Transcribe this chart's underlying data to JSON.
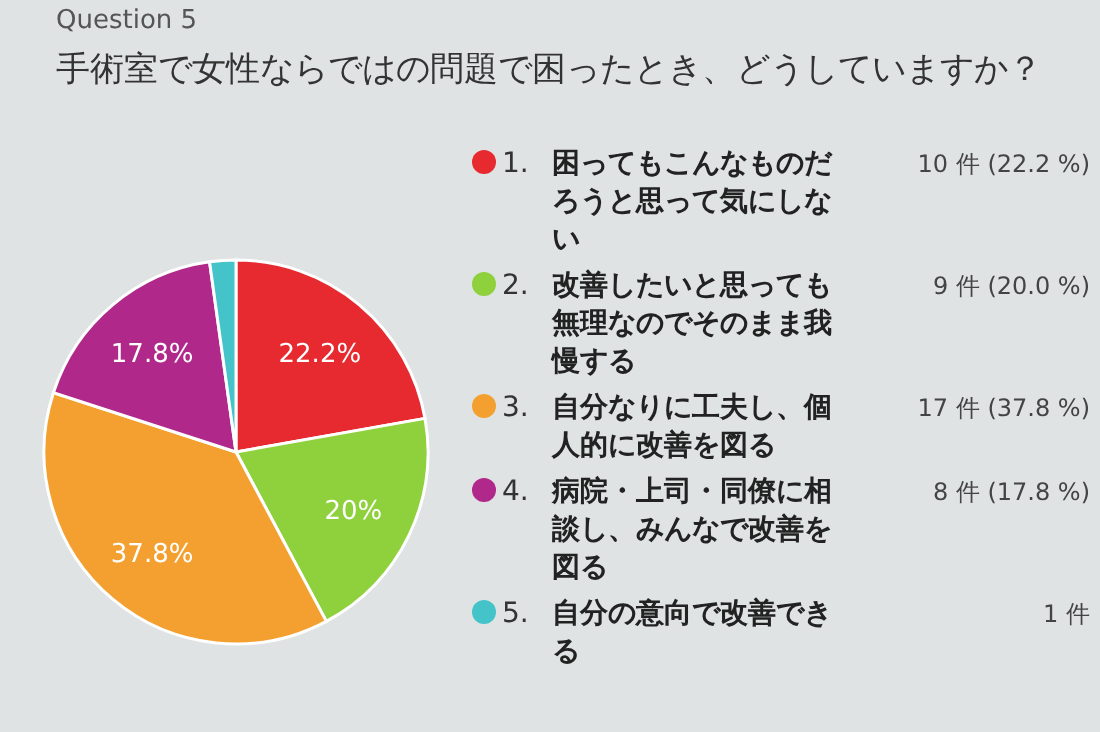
{
  "chart_data": {
    "type": "pie",
    "title": "Question 5",
    "subtitle": "手術室で女性ならではの問題で困ったとき、どうしていますか？",
    "categories": [
      "1. 困ってもこんなものだろうと思って気にしない",
      "2. 改善したいと思っても無理なのでそのまま我慢する",
      "3. 自分なりに工夫し、個人的に改善を図る",
      "4. 病院・上司・同僚に相談し、みんなで改善を図る",
      "5. 自分の意向で改善できる"
    ],
    "values": [
      22.2,
      20.0,
      37.8,
      17.8,
      2.2
    ],
    "colors": [
      "#e62a30",
      "#8fd13c",
      "#f4a030",
      "#b0288a",
      "#44c4c8"
    ],
    "value_labels": [
      "22.2%",
      "20%",
      "37.8%",
      "17.8%",
      null
    ],
    "annotations": [
      "10 件 (22.2 %)",
      "9 件 (20.0 %)",
      "17 件 (37.8 %)",
      "8 件 (17.8 %)",
      "1 件"
    ],
    "legend": "right"
  }
}
